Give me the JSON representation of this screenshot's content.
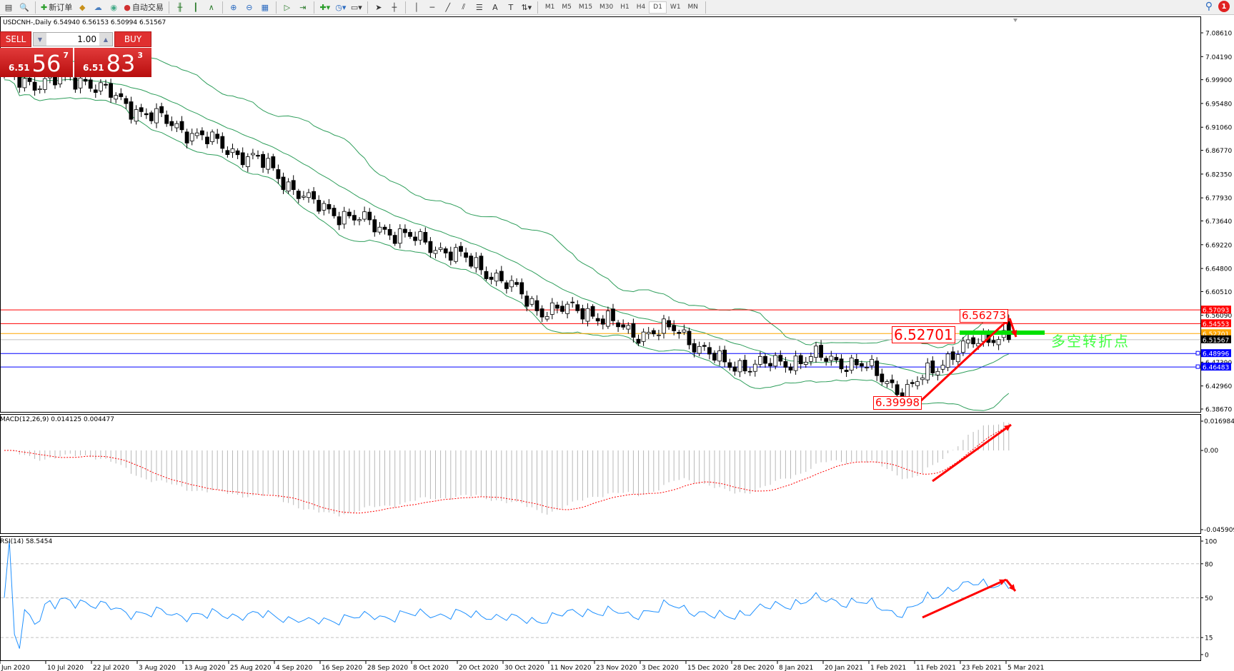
{
  "toolbar": {
    "new_order": "新订单",
    "auto_trading": "自动交易",
    "timeframes": [
      "M1",
      "M5",
      "M15",
      "M30",
      "H1",
      "H4",
      "D1",
      "W1",
      "MN"
    ],
    "active_timeframe": "D1",
    "notification_count": "1"
  },
  "chart": {
    "title": "USDCNH-,Daily  6.54940 6.56153 6.50994 6.51567"
  },
  "trade_panel": {
    "sell_label": "SELL",
    "buy_label": "BUY",
    "lot": "1.00",
    "sell_small": "6.51",
    "sell_big": "56",
    "sell_pip": "7",
    "buy_small": "6.51",
    "buy_big": "83",
    "buy_pip": "3"
  },
  "annotations": {
    "level_label": "6.52701",
    "high_label": "6.56273",
    "low_label": "6.39998",
    "note": "多空转折点"
  },
  "chart_data": {
    "type": "candlestick",
    "symbol": "USDCNH-",
    "timeframe": "Daily",
    "price_axis": {
      "ylim": [
        6.3867,
        7.0861
      ],
      "ticks": [
        "7.08610",
        "7.04190",
        "6.99900",
        "6.95480",
        "6.91060",
        "6.86770",
        "6.82350",
        "6.77930",
        "6.73640",
        "6.69220",
        "6.64800",
        "6.60510",
        "6.56090",
        "6.47390",
        "6.42960",
        "6.38670"
      ]
    },
    "date_ticks": [
      "Jun 2020",
      "10 Jul 2020",
      "22 Jul 2020",
      "3 Aug 2020",
      "13 Aug 2020",
      "25 Aug 2020",
      "4 Sep 2020",
      "16 Sep 2020",
      "28 Sep 2020",
      "8 Oct 2020",
      "20 Oct 2020",
      "30 Oct 2020",
      "11 Nov 2020",
      "23 Nov 2020",
      "3 Dec 2020",
      "15 Dec 2020",
      "28 Dec 2020",
      "8 Jan 2021",
      "20 Jan 2021",
      "1 Feb 2021",
      "11 Feb 2021",
      "23 Feb 2021",
      "5 Mar 2021"
    ],
    "approx_close_at_ticks": [
      7.001,
      6.994,
      7.001,
      6.95,
      6.914,
      6.877,
      6.841,
      6.768,
      6.739,
      6.709,
      6.68,
      6.636,
      6.571,
      6.571,
      6.527,
      6.534,
      6.469,
      6.469,
      6.483,
      6.469,
      6.418,
      6.49,
      6.527
    ],
    "last_close": 6.51567,
    "horizontal_levels": [
      {
        "price": "6.57093",
        "color": "#ff0000"
      },
      {
        "price": "6.54553",
        "color": "#ff0000"
      },
      {
        "price": "6.52701",
        "color": "#ffa500"
      },
      {
        "price": "6.51567",
        "color": "#000000",
        "line": "#c0c0c0"
      },
      {
        "price": "6.48996",
        "color": "#0000ff"
      },
      {
        "price": "6.46483",
        "color": "#0000ff"
      }
    ],
    "indicators": {
      "bollinger_color": "#2e9e5b",
      "macd": {
        "label": "MACD(12,26,9) 0.014125 0.004477",
        "ticks": [
          "0.016984",
          "0.00",
          "-0.045909"
        ],
        "ylim": [
          -0.045909,
          0.016984
        ]
      },
      "rsi": {
        "label": "RSI(14) 58.5454",
        "ticks": [
          "100",
          "80",
          "50",
          "15",
          "0"
        ],
        "levels": [
          80,
          50,
          15
        ]
      }
    }
  }
}
